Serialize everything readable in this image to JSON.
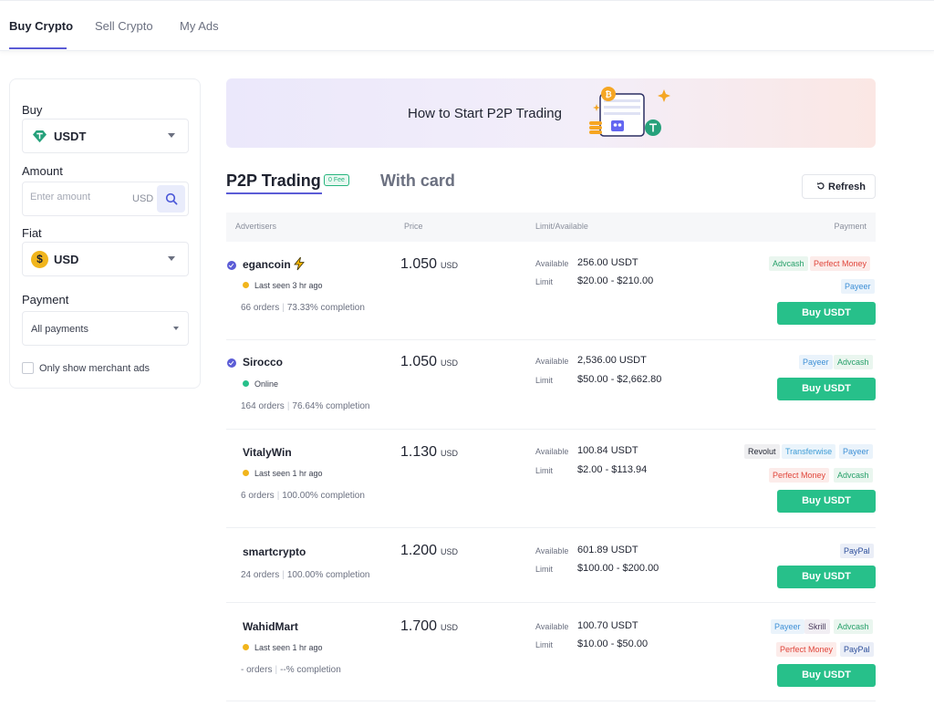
{
  "topnav": {
    "tabs": [
      {
        "label": "Buy Crypto",
        "active": true
      },
      {
        "label": "Sell Crypto",
        "active": false
      },
      {
        "label": "My Ads",
        "active": false
      }
    ]
  },
  "sidebar": {
    "buy_label": "Buy",
    "buy_value": "USDT",
    "amount_label": "Amount",
    "amount_placeholder": "Enter amount",
    "amount_unit": "USD",
    "fiat_label": "Fiat",
    "fiat_value": "USD",
    "fiat_symbol": "$",
    "payment_label": "Payment",
    "payment_value": "All payments",
    "merchant_label": "Only show merchant ads"
  },
  "banner": {
    "title": "How to Start P2P Trading"
  },
  "tabs": {
    "p2p": "P2P Trading",
    "fee_badge": "0 Fee",
    "card": "With card",
    "refresh": "Refresh"
  },
  "table": {
    "headers": {
      "advertisers": "Advertisers",
      "price": "Price",
      "limit": "Limit/Available",
      "payment": "Payment"
    },
    "available_label": "Available",
    "limit_label": "Limit",
    "buy_label": "Buy USDT",
    "rows": [
      {
        "name": "egancoin",
        "verified": true,
        "status": "Last seen 3 hr ago",
        "orders": "66 orders",
        "completion": "73.33% completion",
        "price": "1.050",
        "currency": "USD",
        "available": "256.00 USDT",
        "limit": "$20.00 - $210.00"
      },
      {
        "name": "Sirocco",
        "verified": true,
        "status": "Online",
        "orders": "164 orders",
        "completion": "76.64% completion",
        "price": "1.050",
        "currency": "USD",
        "available": "2,536.00 USDT",
        "limit": "$50.00 - $2,662.80"
      },
      {
        "name": "VitalyWin",
        "verified": false,
        "status": "Last seen 1 hr ago",
        "orders": "6 orders",
        "completion": "100.00% completion",
        "price": "1.130",
        "currency": "USD",
        "available": "100.84 USDT",
        "limit": "$2.00 - $113.94"
      },
      {
        "name": "smartcrypto",
        "verified": false,
        "status": "",
        "orders": "24 orders",
        "completion": "100.00% completion",
        "price": "1.200",
        "currency": "USD",
        "available": "601.89 USDT",
        "limit": "$100.00 - $200.00"
      },
      {
        "name": "WahidMart",
        "verified": false,
        "status": "Last seen 1 hr ago",
        "orders": "- orders",
        "completion": "--% completion",
        "price": "1.700",
        "currency": "USD",
        "available": "100.70 USDT",
        "limit": "$10.00 - $50.00"
      }
    ],
    "payments": {
      "advcash": "Advcash",
      "perfect": "Perfect Money",
      "payeer": "Payeer",
      "revolut": "Revolut",
      "transferwise": "Transferwise",
      "skrill": "Skrill",
      "paypal": "PayPal"
    }
  },
  "colors": {
    "accent": "#5b5cd6",
    "buy_button": "#27c08a",
    "online": "#27c08a",
    "away": "#f1b51c"
  }
}
